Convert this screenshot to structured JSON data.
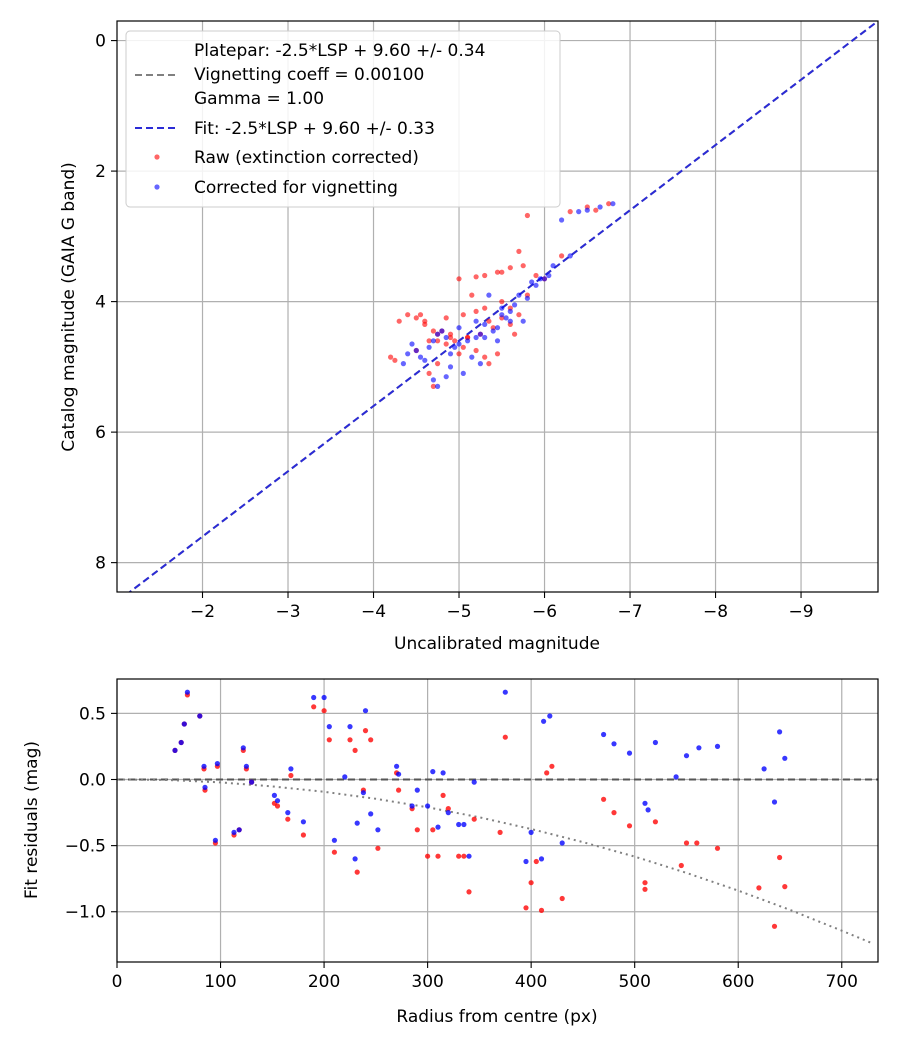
{
  "chart_data": [
    {
      "type": "scatter",
      "xlabel": "Uncalibrated magnitude",
      "ylabel": "Catalog magnitude (GAIA G band)",
      "xlim": [
        -1.0,
        -9.9
      ],
      "ylim": [
        8.45,
        -0.3
      ],
      "x_inverted": true,
      "y_inverted": true,
      "grid": true,
      "legend_placement": "top-left",
      "xticks": [
        -2,
        -3,
        -4,
        -5,
        -6,
        -7,
        -8,
        -9
      ],
      "xtick_labels": [
        "−2",
        "−3",
        "−4",
        "−5",
        "−6",
        "−7",
        "−8",
        "−9"
      ],
      "yticks": [
        0,
        2,
        4,
        6,
        8
      ],
      "ytick_labels": [
        "0",
        "2",
        "4",
        "6",
        "8"
      ],
      "legend": [
        {
          "label": "Platepar: -2.5*LSP + 9.60 +/- 0.34",
          "style": "none"
        },
        {
          "label": "Vignetting coeff = 0.00100",
          "style": "dash-gray"
        },
        {
          "label": "Gamma = 1.00",
          "style": "none"
        },
        {
          "label": "Fit: -2.5*LSP + 9.60 +/- 0.33",
          "style": "dash-blue"
        },
        {
          "label": "Raw (extinction corrected)",
          "style": "dot-red"
        },
        {
          "label": "Corrected for vignetting",
          "style": "dot-blue"
        }
      ],
      "lines": [
        {
          "name": "Platepar: -2.5*LSP + 9.60 +/- 0.34",
          "x": [
            -1.0,
            -9.9
          ],
          "y": [
            8.6,
            -0.3
          ],
          "color": "#808080",
          "style": "dashed"
        },
        {
          "name": "Fit: -2.5*LSP + 9.60 +/- 0.33",
          "x": [
            -1.0,
            -9.9
          ],
          "y": [
            8.6,
            -0.3
          ],
          "color": "#2b2bd6",
          "style": "dashed"
        }
      ],
      "series": [
        {
          "name": "Raw (extinction corrected)",
          "color": "#ff0000",
          "x": [
            -6.75,
            -6.6,
            -6.5,
            -6.3,
            -6.2,
            -5.8,
            -5.7,
            -5.75,
            -5.6,
            -5.5,
            -5.45,
            -5.3,
            -5.2,
            -5.15,
            -5.0,
            -5.05,
            -5.2,
            -5.3,
            -5.35,
            -5.5,
            -5.6,
            -5.65,
            -5.7,
            -5.8,
            -5.9,
            -5.5,
            -5.4,
            -5.25,
            -5.1,
            -5.05,
            -4.95,
            -4.9,
            -4.85,
            -4.75,
            -4.7,
            -4.65,
            -4.6,
            -4.55,
            -4.5,
            -4.4,
            -4.3,
            -4.25,
            -4.2,
            -4.65,
            -4.7,
            -4.75,
            -4.8,
            -4.9,
            -5.0,
            -5.1,
            -5.2,
            -5.3,
            -5.35,
            -5.45,
            -4.5,
            -4.6,
            -4.85,
            -5.6,
            -6.0,
            -4.75
          ],
          "y": [
            2.5,
            2.6,
            2.55,
            2.62,
            3.3,
            2.68,
            3.23,
            3.45,
            3.48,
            3.55,
            3.55,
            3.6,
            3.62,
            3.9,
            3.65,
            4.2,
            4.15,
            4.1,
            4.3,
            4.25,
            4.35,
            4.5,
            4.2,
            3.9,
            3.6,
            4.0,
            4.4,
            4.5,
            4.55,
            4.7,
            4.6,
            4.55,
            4.65,
            4.5,
            4.45,
            4.6,
            4.3,
            4.2,
            4.25,
            4.2,
            4.3,
            4.9,
            4.85,
            5.1,
            5.3,
            4.6,
            4.45,
            4.5,
            4.8,
            4.55,
            4.75,
            4.85,
            4.95,
            4.8,
            4.75,
            4.35,
            4.25,
            4.1,
            3.65,
            4.95
          ]
        },
        {
          "name": "Corrected for vignetting",
          "color": "#0000ff",
          "x": [
            -6.8,
            -6.65,
            -6.5,
            -6.4,
            -6.2,
            -6.3,
            -6.1,
            -6.05,
            -5.95,
            -5.85,
            -5.8,
            -5.7,
            -5.65,
            -5.6,
            -5.55,
            -5.5,
            -5.45,
            -5.4,
            -5.3,
            -5.25,
            -5.2,
            -5.1,
            -5.0,
            -4.95,
            -4.9,
            -4.85,
            -4.8,
            -4.75,
            -4.7,
            -4.65,
            -4.6,
            -4.55,
            -4.5,
            -4.45,
            -4.4,
            -4.35,
            -5.35,
            -5.15,
            -5.05,
            -4.9,
            -5.0,
            -5.2,
            -5.5,
            -5.6,
            -5.75,
            -5.9,
            -6.0,
            -5.3,
            -5.45,
            -4.75,
            -4.7,
            -4.85,
            -5.25
          ],
          "y": [
            2.5,
            2.55,
            2.6,
            2.62,
            2.75,
            3.3,
            3.45,
            3.6,
            3.65,
            3.7,
            3.95,
            3.9,
            4.05,
            4.3,
            4.25,
            4.1,
            4.4,
            4.45,
            4.35,
            4.5,
            4.55,
            4.6,
            4.65,
            4.7,
            4.8,
            4.55,
            4.45,
            4.5,
            4.6,
            4.7,
            4.9,
            4.85,
            4.75,
            4.65,
            4.8,
            4.95,
            3.9,
            4.85,
            5.1,
            5.0,
            4.4,
            4.3,
            4.2,
            4.15,
            4.3,
            3.75,
            3.65,
            4.55,
            4.6,
            5.3,
            5.2,
            5.15,
            4.95
          ]
        }
      ]
    },
    {
      "type": "scatter",
      "xlabel": "Radius from centre (px)",
      "ylabel": "Fit residuals (mag)",
      "xlim": [
        0,
        735
      ],
      "ylim": [
        -1.38,
        0.76
      ],
      "grid": true,
      "xticks": [
        0,
        100,
        200,
        300,
        400,
        500,
        600,
        700
      ],
      "xtick_labels": [
        "0",
        "100",
        "200",
        "300",
        "400",
        "500",
        "600",
        "700"
      ],
      "yticks": [
        0.5,
        0.0,
        -0.5,
        -1.0
      ],
      "ytick_labels": [
        "0.5",
        "0.0",
        "−0.5",
        "−1.0"
      ],
      "lines": [
        {
          "name": "zero",
          "x": [
            0,
            735
          ],
          "y": [
            0,
            0
          ],
          "color": "#555555",
          "style": "dashed"
        },
        {
          "name": "vignetting",
          "x": [
            0,
            50,
            100,
            150,
            200,
            250,
            300,
            350,
            400,
            450,
            500,
            550,
            600,
            650,
            700,
            730
          ],
          "y": [
            0,
            -0.004,
            -0.022,
            -0.052,
            -0.093,
            -0.146,
            -0.21,
            -0.286,
            -0.374,
            -0.473,
            -0.583,
            -0.706,
            -0.84,
            -0.986,
            -1.143,
            -1.24
          ],
          "color": "#808080",
          "style": "dotted"
        }
      ],
      "series": [
        {
          "name": "Raw (extinction corrected)",
          "color": "#ff0000",
          "x": [
            56,
            62,
            65,
            68,
            80,
            84,
            85,
            95,
            97,
            113,
            118,
            122,
            125,
            130,
            152,
            155,
            165,
            168,
            180,
            190,
            200,
            205,
            210,
            225,
            230,
            232,
            238,
            240,
            245,
            252,
            270,
            272,
            285,
            290,
            300,
            305,
            310,
            315,
            320,
            330,
            335,
            340,
            345,
            370,
            375,
            395,
            400,
            405,
            410,
            415,
            420,
            430,
            470,
            480,
            495,
            510,
            510,
            520,
            545,
            550,
            560,
            580,
            620,
            635,
            640,
            645
          ],
          "y": [
            0.22,
            0.28,
            0.42,
            0.64,
            0.48,
            0.08,
            -0.08,
            -0.48,
            0.1,
            -0.42,
            -0.38,
            0.22,
            0.08,
            -0.02,
            -0.18,
            -0.2,
            -0.3,
            0.03,
            -0.42,
            0.55,
            0.52,
            0.3,
            -0.55,
            0.3,
            0.22,
            -0.7,
            -0.08,
            0.37,
            0.3,
            -0.52,
            0.05,
            -0.08,
            -0.22,
            -0.38,
            -0.58,
            -0.38,
            -0.58,
            -0.12,
            -0.22,
            -0.58,
            -0.58,
            -0.85,
            -0.3,
            -0.4,
            0.32,
            -0.97,
            -0.78,
            -0.62,
            -0.99,
            0.05,
            0.1,
            -0.9,
            -0.15,
            -0.25,
            -0.35,
            -0.78,
            -0.83,
            -0.32,
            -0.65,
            -0.48,
            -0.48,
            -0.52,
            -0.82,
            -1.11,
            -0.59,
            -0.81
          ]
        },
        {
          "name": "Corrected for vignetting",
          "color": "#0000ff",
          "x": [
            56,
            62,
            65,
            68,
            80,
            84,
            85,
            95,
            97,
            113,
            118,
            122,
            125,
            130,
            152,
            155,
            165,
            168,
            180,
            190,
            200,
            205,
            210,
            220,
            225,
            230,
            232,
            238,
            240,
            245,
            252,
            270,
            272,
            285,
            290,
            300,
            305,
            310,
            315,
            320,
            330,
            335,
            340,
            345,
            375,
            395,
            400,
            410,
            412,
            418,
            430,
            470,
            480,
            495,
            510,
            513,
            520,
            540,
            550,
            562,
            580,
            625,
            635,
            640,
            645
          ],
          "y": [
            0.22,
            0.28,
            0.42,
            0.66,
            0.48,
            0.1,
            -0.06,
            -0.46,
            0.12,
            -0.4,
            -0.38,
            0.24,
            0.1,
            -0.02,
            -0.12,
            -0.16,
            -0.25,
            0.08,
            -0.32,
            0.62,
            0.62,
            0.4,
            -0.46,
            0.02,
            0.4,
            -0.6,
            -0.33,
            -0.1,
            0.52,
            -0.26,
            -0.38,
            0.1,
            0.04,
            -0.2,
            -0.08,
            -0.2,
            0.06,
            -0.36,
            0.05,
            -0.25,
            -0.34,
            -0.34,
            -0.58,
            -0.02,
            0.66,
            -0.62,
            -0.4,
            -0.6,
            0.44,
            0.48,
            -0.48,
            0.34,
            0.27,
            0.2,
            -0.18,
            -0.23,
            0.28,
            0.02,
            0.18,
            0.24,
            0.25,
            0.08,
            -0.17,
            0.36,
            0.16
          ]
        }
      ]
    }
  ]
}
